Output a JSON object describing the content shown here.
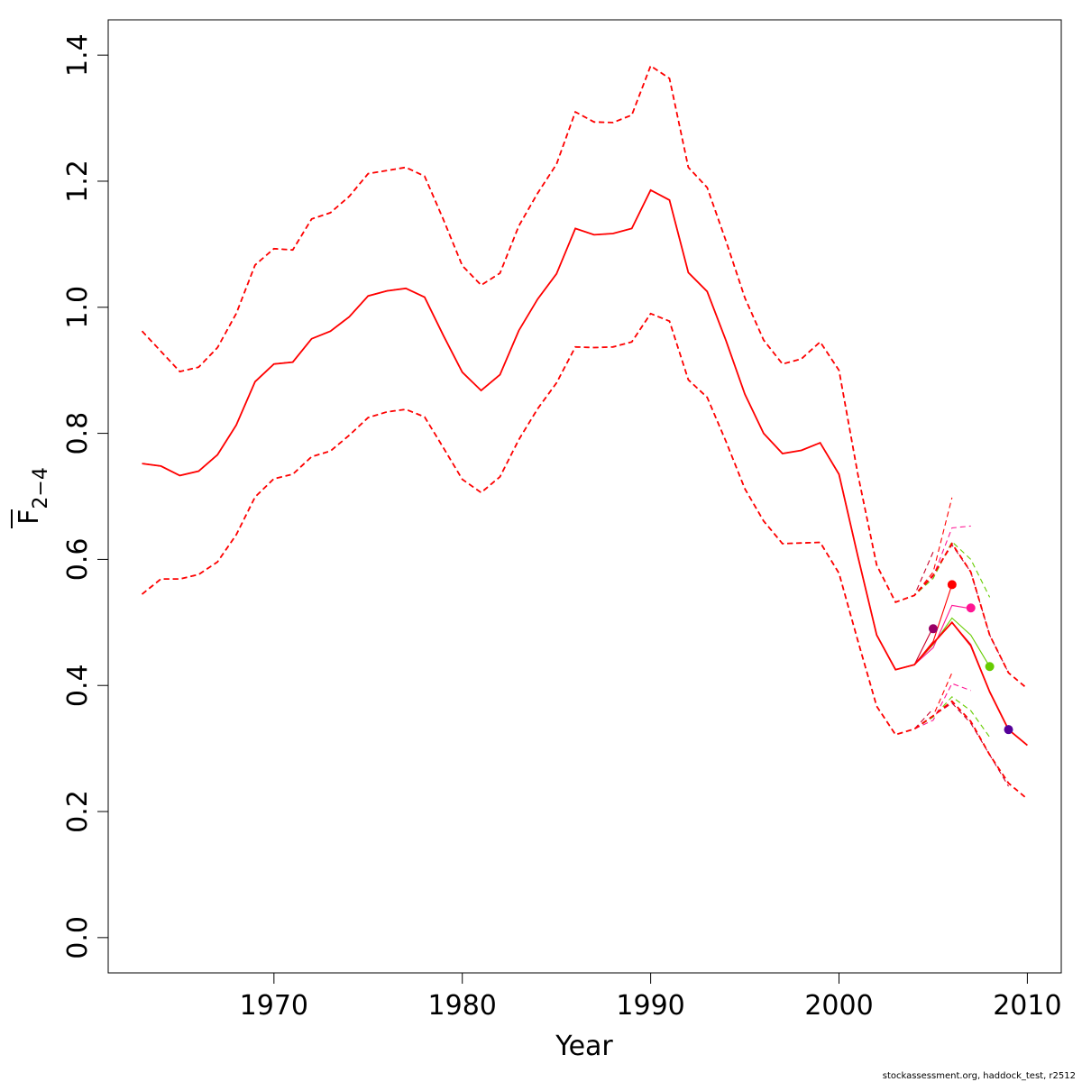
{
  "chart_data": {
    "type": "line",
    "title": "",
    "xlabel": "Year",
    "ylabel": "F",
    "ylabel_subscript": "2−4",
    "xlim": [
      1961.2,
      2011.8
    ],
    "ylim": [
      -0.056,
      1.456
    ],
    "x_ticks": [
      1970,
      1980,
      1990,
      2000,
      2010
    ],
    "y_ticks": [
      0.0,
      0.2,
      0.4,
      0.6,
      0.8,
      1.0,
      1.2,
      1.4
    ],
    "x_tick_labels": [
      "1970",
      "1980",
      "1990",
      "2000",
      "2010"
    ],
    "y_tick_labels": [
      "0.0",
      "0.2",
      "0.4",
      "0.6",
      "0.8",
      "1.0",
      "1.2",
      "1.4"
    ],
    "grid": false,
    "legend": "none",
    "base_years": [
      1963,
      1964,
      1965,
      1966,
      1967,
      1968,
      1969,
      1970,
      1971,
      1972,
      1973,
      1974,
      1975,
      1976,
      1977,
      1978,
      1979,
      1980,
      1981,
      1982,
      1983,
      1984,
      1985,
      1986,
      1987,
      1988,
      1989,
      1990,
      1991,
      1992,
      1993,
      1994,
      1995,
      1996,
      1997,
      1998,
      1999,
      2000,
      2001,
      2002,
      2003,
      2004
    ],
    "base_estimate": [
      0.752,
      0.748,
      0.733,
      0.74,
      0.766,
      0.813,
      0.882,
      0.91,
      0.913,
      0.95,
      0.962,
      0.985,
      1.018,
      1.026,
      1.03,
      1.016,
      0.955,
      0.897,
      0.868,
      0.893,
      0.963,
      1.013,
      1.053,
      1.125,
      1.115,
      1.117,
      1.125,
      1.186,
      1.17,
      1.055,
      1.025,
      0.947,
      0.862,
      0.8,
      0.768,
      0.773,
      0.785,
      0.735,
      0.605,
      0.48,
      0.425,
      0.433
    ],
    "base_lower": [
      0.545,
      0.569,
      0.569,
      0.576,
      0.596,
      0.639,
      0.699,
      0.728,
      0.735,
      0.763,
      0.772,
      0.797,
      0.825,
      0.834,
      0.838,
      0.826,
      0.777,
      0.727,
      0.706,
      0.731,
      0.79,
      0.839,
      0.88,
      0.937,
      0.936,
      0.937,
      0.945,
      0.99,
      0.978,
      0.885,
      0.857,
      0.787,
      0.712,
      0.661,
      0.625,
      0.626,
      0.627,
      0.578,
      0.471,
      0.367,
      0.322,
      0.331
    ],
    "base_upper": [
      0.962,
      0.93,
      0.898,
      0.905,
      0.936,
      0.99,
      1.067,
      1.093,
      1.091,
      1.14,
      1.15,
      1.176,
      1.212,
      1.217,
      1.222,
      1.208,
      1.139,
      1.066,
      1.035,
      1.054,
      1.129,
      1.181,
      1.227,
      1.31,
      1.294,
      1.293,
      1.305,
      1.383,
      1.363,
      1.222,
      1.19,
      1.105,
      1.015,
      0.948,
      0.91,
      0.918,
      0.945,
      0.9,
      0.735,
      0.591,
      0.532,
      0.543
    ],
    "series": [
      {
        "color": "#C8002A",
        "terminal_year": 2005,
        "estimate_tail": [
          0.493
        ],
        "lower_tail": [
          0.363
        ],
        "upper_tail": [
          0.612
        ],
        "point_year": 2005,
        "point_value": 0.49,
        "point_color": "#990066"
      },
      {
        "color": "#FF0000",
        "terminal_year": 2006,
        "estimate_tail": [
          0.47,
          0.56
        ],
        "lower_tail": [
          0.352,
          0.42
        ],
        "upper_tail": [
          0.58,
          0.698
        ],
        "point_year": 2006,
        "point_value": 0.56,
        "point_color": "#FF0000"
      },
      {
        "color": "#FF1493",
        "terminal_year": 2007,
        "estimate_tail": [
          0.46,
          0.527,
          0.522
        ],
        "lower_tail": [
          0.345,
          0.403,
          0.392
        ],
        "upper_tail": [
          0.573,
          0.65,
          0.653
        ],
        "point_year": 2007,
        "point_value": 0.523,
        "point_color": "#FF1493"
      },
      {
        "color": "#66CC00",
        "terminal_year": 2008,
        "estimate_tail": [
          0.465,
          0.507,
          0.48,
          0.43
        ],
        "lower_tail": [
          0.35,
          0.382,
          0.36,
          0.318
        ],
        "upper_tail": [
          0.57,
          0.628,
          0.6,
          0.54
        ],
        "point_year": 2008,
        "point_value": 0.43,
        "point_color": "#66CC00"
      },
      {
        "color": "#CC0033",
        "terminal_year": 2009,
        "estimate_tail": [
          0.467,
          0.5,
          0.465,
          0.39,
          0.33
        ],
        "lower_tail": [
          0.352,
          0.372,
          0.34,
          0.29,
          0.24
        ],
        "upper_tail": [
          0.575,
          0.623,
          0.58,
          0.48,
          0.42
        ],
        "point_year": 2009,
        "point_value": 0.33,
        "point_color": "#550099"
      },
      {
        "color": "#FF0000",
        "terminal_year": 2010,
        "estimate_tail": [
          0.467,
          0.5,
          0.463,
          0.39,
          0.33,
          0.305
        ],
        "lower_tail": [
          0.352,
          0.375,
          0.343,
          0.29,
          0.245,
          0.22
        ],
        "upper_tail": [
          0.575,
          0.625,
          0.58,
          0.48,
          0.42,
          0.395
        ],
        "point_year": null,
        "point_value": null,
        "point_color": ""
      }
    ]
  },
  "footer": {
    "credit": "stockassessment.org, haddock_test, r2512"
  }
}
